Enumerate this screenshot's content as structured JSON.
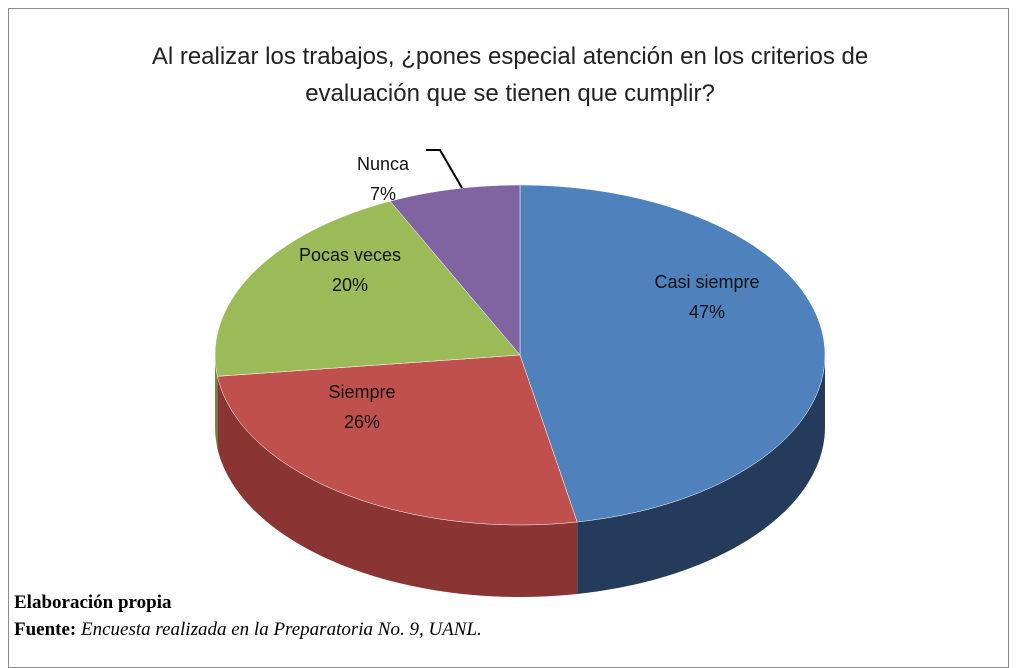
{
  "chart_data": {
    "type": "pie3d",
    "title": "Al realizar los trabajos, ¿pones especial atención en los criterios de evaluación que se tienen que cumplir?",
    "categories": [
      "Casi siempre",
      "Siempre",
      "Pocas veces",
      "Nunca"
    ],
    "values": [
      47,
      26,
      20,
      7
    ],
    "value_labels": [
      "47%",
      "26%",
      "20%",
      "7%"
    ],
    "colors": [
      "#4f81bd",
      "#c0504d",
      "#9bbb59",
      "#8064a2"
    ],
    "side_colors": [
      "#243b5c",
      "#8a3533",
      "#6f8a3c",
      "#5a4677"
    ]
  },
  "footer": {
    "credit": "Elaboración propia",
    "source_label": "Fuente:",
    "source": "Encuesta realizada en la Preparatoria No. 9, UANL."
  }
}
